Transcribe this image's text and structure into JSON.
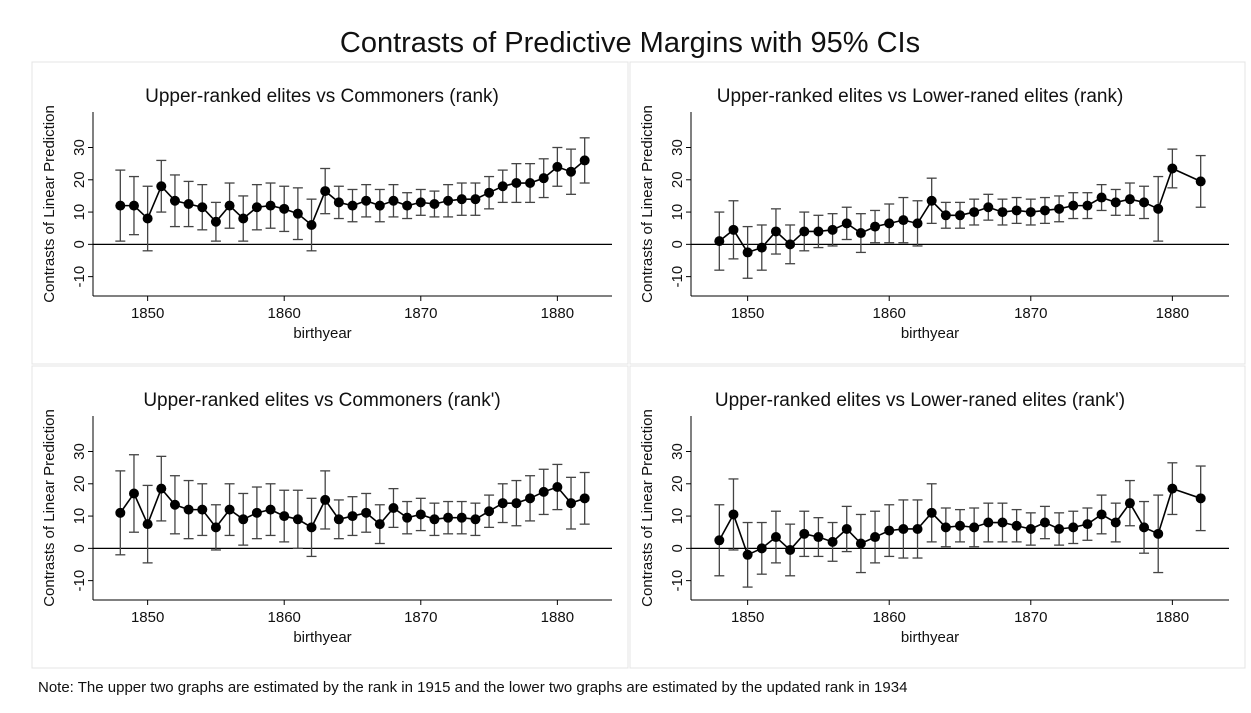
{
  "title": "Contrasts of Predictive Margins with 95% CIs",
  "note": "Note: The upper two graphs are estimated by the rank in 1915 and the lower two graphs are estimated by the updated rank in 1934",
  "chart_data": [
    {
      "type": "line",
      "title": "Upper-ranked elites vs Commoners (rank)",
      "xlabel": "birthyear",
      "ylabel": "Contrasts of Linear Prediction",
      "x": [
        1848,
        1849,
        1850,
        1851,
        1852,
        1853,
        1854,
        1855,
        1856,
        1857,
        1858,
        1859,
        1860,
        1861,
        1862,
        1863,
        1864,
        1865,
        1866,
        1867,
        1868,
        1869,
        1870,
        1871,
        1872,
        1873,
        1874,
        1875,
        1876,
        1877,
        1878,
        1879,
        1880,
        1881,
        1882
      ],
      "series": [
        {
          "color": "#000000",
          "values": [
            12,
            12,
            8,
            18,
            13.5,
            12.5,
            11.5,
            7,
            12,
            8,
            11.5,
            12,
            11,
            9.5,
            6,
            16.5,
            13,
            12,
            13.5,
            12,
            13.5,
            12,
            13,
            12.5,
            13.5,
            14,
            14,
            16,
            18,
            19,
            19,
            20.5,
            24,
            22.5,
            26
          ],
          "errors": [
            11,
            9,
            10,
            8,
            8,
            7,
            7,
            6,
            7,
            7,
            7,
            7,
            7,
            8,
            8,
            7,
            5,
            5,
            5,
            5,
            5,
            4,
            4,
            4,
            5,
            5,
            5,
            5,
            5,
            6,
            6,
            6,
            6,
            7,
            7
          ]
        }
      ],
      "xlim": [
        1846,
        1884
      ],
      "xticks": [
        1850,
        1860,
        1870,
        1880
      ],
      "ylim": [
        -16,
        41
      ],
      "yticks": [
        -10,
        0,
        10,
        20,
        30
      ],
      "hline": 0
    },
    {
      "type": "line",
      "title": "Upper-ranked elites vs Lower-raned elites (rank)",
      "xlabel": "birthyear",
      "ylabel": "Contrasts of Linear Prediction",
      "x": [
        1848,
        1849,
        1850,
        1851,
        1852,
        1853,
        1854,
        1855,
        1856,
        1857,
        1858,
        1859,
        1860,
        1861,
        1862,
        1863,
        1864,
        1865,
        1866,
        1867,
        1868,
        1869,
        1870,
        1871,
        1872,
        1873,
        1874,
        1875,
        1876,
        1877,
        1878,
        1879,
        1880,
        1882
      ],
      "series": [
        {
          "color": "#000000",
          "values": [
            1,
            4.5,
            -2.5,
            -1,
            4,
            0,
            4,
            4,
            4.5,
            6.5,
            3.5,
            5.5,
            6.5,
            7.5,
            6.5,
            13.5,
            9,
            9,
            10,
            11.5,
            10,
            10.5,
            10,
            10.5,
            11,
            12,
            12,
            14.5,
            13,
            14,
            13,
            11,
            23.5,
            19.5
          ],
          "errors": [
            9,
            9,
            8,
            7,
            7,
            6,
            6,
            5,
            5,
            5,
            6,
            5,
            6,
            7,
            7,
            7,
            4,
            4,
            4,
            4,
            4,
            4,
            4,
            4,
            4,
            4,
            4,
            4,
            4,
            5,
            5,
            10,
            6,
            8
          ]
        }
      ],
      "xlim": [
        1846,
        1884
      ],
      "xticks": [
        1850,
        1860,
        1870,
        1880
      ],
      "ylim": [
        -16,
        41
      ],
      "yticks": [
        -10,
        0,
        10,
        20,
        30
      ],
      "hline": 0
    },
    {
      "type": "line",
      "title": "Upper-ranked elites vs Commoners (rank')",
      "xlabel": "birthyear",
      "ylabel": "Contrasts of Linear Prediction",
      "x": [
        1848,
        1849,
        1850,
        1851,
        1852,
        1853,
        1854,
        1855,
        1856,
        1857,
        1858,
        1859,
        1860,
        1861,
        1862,
        1863,
        1864,
        1865,
        1866,
        1867,
        1868,
        1869,
        1870,
        1871,
        1872,
        1873,
        1874,
        1875,
        1876,
        1877,
        1878,
        1879,
        1880,
        1881,
        1882
      ],
      "series": [
        {
          "color": "#000000",
          "values": [
            11,
            17,
            7.5,
            18.5,
            13.5,
            12,
            12,
            6.5,
            12,
            9,
            11,
            12,
            10,
            9,
            6.5,
            15,
            9,
            10,
            11,
            7.5,
            12.5,
            9.5,
            10.5,
            9,
            9.5,
            9.5,
            9,
            11.5,
            14,
            14,
            15.5,
            17.5,
            19,
            14,
            15.5
          ],
          "errors": [
            13,
            12,
            12,
            10,
            9,
            9,
            8,
            7,
            8,
            8,
            8,
            8,
            8,
            9,
            9,
            9,
            6,
            6,
            6,
            6,
            6,
            5,
            5,
            5,
            5,
            5,
            5,
            5,
            6,
            7,
            7,
            7,
            7,
            8,
            8
          ]
        }
      ],
      "xlim": [
        1846,
        1884
      ],
      "xticks": [
        1850,
        1860,
        1870,
        1880
      ],
      "ylim": [
        -16,
        41
      ],
      "yticks": [
        -10,
        0,
        10,
        20,
        30
      ],
      "hline": 0
    },
    {
      "type": "line",
      "title": "Upper-ranked elites vs Lower-raned elites (rank')",
      "xlabel": "birthyear",
      "ylabel": "Contrasts of Linear Prediction",
      "x": [
        1848,
        1849,
        1850,
        1851,
        1852,
        1853,
        1854,
        1855,
        1856,
        1857,
        1858,
        1859,
        1860,
        1861,
        1862,
        1863,
        1864,
        1865,
        1866,
        1867,
        1868,
        1869,
        1870,
        1871,
        1872,
        1873,
        1874,
        1875,
        1876,
        1877,
        1878,
        1879,
        1880,
        1882
      ],
      "series": [
        {
          "color": "#000000",
          "values": [
            2.5,
            10.5,
            -2,
            0,
            3.5,
            -0.5,
            4.5,
            3.5,
            2,
            6,
            1.5,
            3.5,
            5.5,
            6,
            6,
            11,
            6.5,
            7,
            6.5,
            8,
            8,
            7,
            6,
            8,
            6,
            6.5,
            7.5,
            10.5,
            8,
            14,
            6.5,
            4.5,
            18.5,
            15.5
          ],
          "errors": [
            11,
            11,
            10,
            8,
            8,
            8,
            7,
            6,
            6,
            7,
            9,
            8,
            8,
            9,
            9,
            9,
            6,
            5,
            6,
            6,
            6,
            5,
            5,
            5,
            5,
            5,
            5,
            6,
            6,
            7,
            8,
            12,
            8,
            10
          ]
        }
      ],
      "xlim": [
        1846,
        1884
      ],
      "xticks": [
        1850,
        1860,
        1870,
        1880
      ],
      "ylim": [
        -16,
        41
      ],
      "yticks": [
        -10,
        0,
        10,
        20,
        30
      ],
      "hline": 0
    }
  ]
}
